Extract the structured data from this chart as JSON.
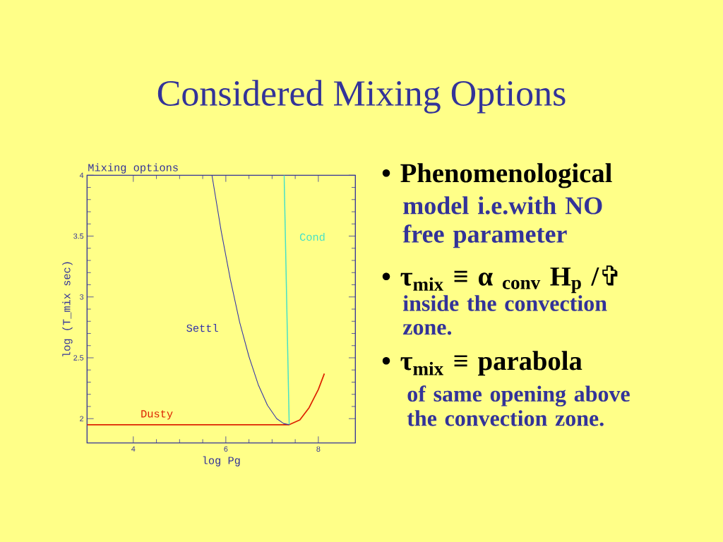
{
  "chart_data": {
    "type": "line",
    "title": "Considered Mixing Options",
    "subtitle": "Mixing options",
    "xlabel": "log Pg",
    "ylabel": "log (T_mix sec)",
    "xlim": [
      3,
      8.8
    ],
    "ylim": [
      1.8,
      4
    ],
    "xticks": [
      4,
      6,
      8
    ],
    "yticks": [
      2,
      2.5,
      3,
      3.5,
      4
    ],
    "series": [
      {
        "name": "Settl",
        "color": "#3333aa",
        "x": [
          5.7,
          5.9,
          6.1,
          6.3,
          6.5,
          6.7,
          6.9,
          7.1,
          7.25,
          7.37
        ],
        "values": [
          4.0,
          3.54,
          3.14,
          2.79,
          2.51,
          2.28,
          2.11,
          2.0,
          1.96,
          1.95
        ]
      },
      {
        "name": "Cond",
        "color": "#44e0c8",
        "x": [
          7.26,
          7.37
        ],
        "values": [
          4.0,
          1.95
        ]
      },
      {
        "name": "Dusty",
        "color": "#dd2200",
        "x": [
          3,
          7.37,
          7.6,
          7.8,
          8.0,
          8.13
        ],
        "values": [
          1.95,
          1.95,
          1.99,
          2.09,
          2.24,
          2.37
        ]
      }
    ],
    "marker": "none",
    "line_style": "solid",
    "legend": false,
    "grid": false,
    "annotations": [
      "• Phenomenological",
      "model i.e.with NO free parameter",
      "• τ$_{mix}$ ≡ α $_{conv}$ H$_{p}$ /✞",
      "inside the convection zone.",
      "• τ$_{mix}$ ≡ parabola",
      "of same opening above the convection zone."
    ]
  }
}
